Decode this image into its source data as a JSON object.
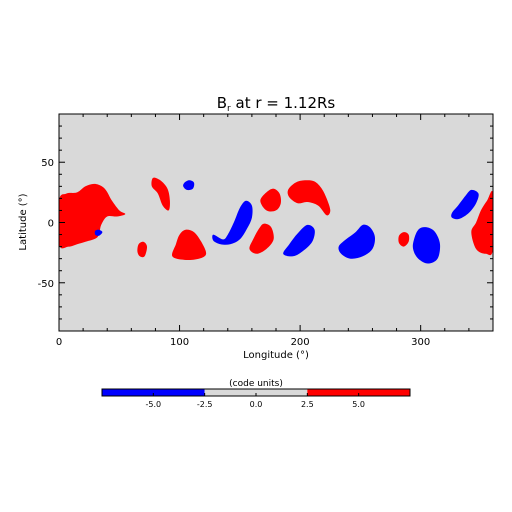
{
  "chart_data": [
    {
      "type": "heatmap",
      "title_main": "B",
      "title_sub": "r",
      "title_rest": " at r = 1.12Rs",
      "xlabel": "Longitude (°)",
      "ylabel": "Latitude (°)",
      "xlim": [
        0,
        360
      ],
      "ylim": [
        -90,
        90
      ],
      "x_ticks": [
        0,
        100,
        200,
        300
      ],
      "y_ticks": [
        -50,
        0,
        50
      ],
      "background_color": "#d9d9d9",
      "colors": {
        "positive": "#ff0000",
        "negative": "#0000ff"
      },
      "regions": [
        {
          "sign": "positive",
          "points": [
            [
              0,
              18
            ],
            [
              6,
              24
            ],
            [
              15,
              25
            ],
            [
              22,
              30
            ],
            [
              30,
              32
            ],
            [
              38,
              28
            ],
            [
              44,
              18
            ],
            [
              50,
              10
            ],
            [
              55,
              7
            ],
            [
              48,
              5
            ],
            [
              40,
              5
            ],
            [
              35,
              -2
            ],
            [
              32,
              -12
            ],
            [
              22,
              -16
            ],
            [
              15,
              -18
            ],
            [
              8,
              -20
            ],
            [
              0,
              -18
            ]
          ]
        },
        {
          "sign": "negative",
          "points": [
            [
              30,
              -7
            ],
            [
              33,
              -6
            ],
            [
              36,
              -8
            ],
            [
              33,
              -11
            ],
            [
              30,
              -10
            ]
          ]
        },
        {
          "sign": "positive",
          "points": [
            [
              78,
              37
            ],
            [
              84,
              35
            ],
            [
              90,
              28
            ],
            [
              92,
              18
            ],
            [
              91,
              10
            ],
            [
              86,
              14
            ],
            [
              82,
              24
            ],
            [
              77,
              30
            ]
          ]
        },
        {
          "sign": "negative",
          "points": [
            [
              104,
              33
            ],
            [
              108,
              35
            ],
            [
              112,
              33
            ],
            [
              111,
              28
            ],
            [
              106,
              27
            ],
            [
              103,
              30
            ]
          ]
        },
        {
          "sign": "positive",
          "points": [
            [
              66,
              -18
            ],
            [
              70,
              -16
            ],
            [
              73,
              -20
            ],
            [
              71,
              -28
            ],
            [
              67,
              -28
            ],
            [
              65,
              -24
            ]
          ]
        },
        {
          "sign": "positive",
          "points": [
            [
              94,
              -28
            ],
            [
              97,
              -18
            ],
            [
              100,
              -10
            ],
            [
              105,
              -6
            ],
            [
              112,
              -8
            ],
            [
              118,
              -16
            ],
            [
              122,
              -26
            ],
            [
              116,
              -30
            ],
            [
              104,
              -31
            ]
          ]
        },
        {
          "sign": "negative",
          "points": [
            [
              128,
              -10
            ],
            [
              136,
              -14
            ],
            [
              140,
              -10
            ],
            [
              145,
              0
            ],
            [
              150,
              12
            ],
            [
              155,
              18
            ],
            [
              160,
              14
            ],
            [
              160,
              4
            ],
            [
              156,
              -5
            ],
            [
              150,
              -14
            ],
            [
              142,
              -18
            ],
            [
              134,
              -18
            ],
            [
              128,
              -15
            ]
          ]
        },
        {
          "sign": "positive",
          "points": [
            [
              158,
              -22
            ],
            [
              161,
              -14
            ],
            [
              166,
              -5
            ],
            [
              170,
              -1
            ],
            [
              176,
              -4
            ],
            [
              178,
              -14
            ],
            [
              172,
              -22
            ],
            [
              164,
              -26
            ]
          ]
        },
        {
          "sign": "positive",
          "points": [
            [
              167,
              18
            ],
            [
              172,
              25
            ],
            [
              178,
              28
            ],
            [
              183,
              24
            ],
            [
              184,
              16
            ],
            [
              180,
              10
            ],
            [
              172,
              10
            ]
          ]
        },
        {
          "sign": "positive",
          "points": [
            [
              190,
              27
            ],
            [
              196,
              33
            ],
            [
              204,
              35
            ],
            [
              212,
              34
            ],
            [
              218,
              28
            ],
            [
              222,
              20
            ],
            [
              225,
              10
            ],
            [
              222,
              6
            ],
            [
              215,
              14
            ],
            [
              206,
              17
            ],
            [
              198,
              16
            ],
            [
              191,
              21
            ]
          ]
        },
        {
          "sign": "negative",
          "points": [
            [
              186,
              -26
            ],
            [
              191,
              -18
            ],
            [
              198,
              -9
            ],
            [
              206,
              -2
            ],
            [
              212,
              -6
            ],
            [
              210,
              -16
            ],
            [
              202,
              -24
            ],
            [
              194,
              -28
            ]
          ]
        },
        {
          "sign": "negative",
          "points": [
            [
              232,
              -20
            ],
            [
              238,
              -14
            ],
            [
              246,
              -8
            ],
            [
              252,
              -2
            ],
            [
              258,
              -4
            ],
            [
              262,
              -12
            ],
            [
              260,
              -22
            ],
            [
              252,
              -28
            ],
            [
              242,
              -30
            ],
            [
              234,
              -26
            ]
          ]
        },
        {
          "sign": "positive",
          "points": [
            [
              282,
              -11
            ],
            [
              286,
              -8
            ],
            [
              290,
              -10
            ],
            [
              290,
              -16
            ],
            [
              286,
              -20
            ],
            [
              282,
              -17
            ]
          ]
        },
        {
          "sign": "negative",
          "points": [
            [
              294,
              -16
            ],
            [
              298,
              -6
            ],
            [
              305,
              -4
            ],
            [
              312,
              -8
            ],
            [
              316,
              -18
            ],
            [
              314,
              -30
            ],
            [
              306,
              -34
            ],
            [
              298,
              -30
            ],
            [
              294,
              -23
            ]
          ]
        },
        {
          "sign": "negative",
          "points": [
            [
              326,
              8
            ],
            [
              331,
              14
            ],
            [
              337,
              22
            ],
            [
              342,
              27
            ],
            [
              348,
              24
            ],
            [
              346,
              16
            ],
            [
              340,
              8
            ],
            [
              332,
              3
            ],
            [
              326,
              4
            ]
          ]
        },
        {
          "sign": "positive",
          "points": [
            [
              342,
              -8
            ],
            [
              346,
              0
            ],
            [
              350,
              10
            ],
            [
              355,
              18
            ],
            [
              360,
              24
            ],
            [
              360,
              -22
            ],
            [
              354,
              -26
            ],
            [
              346,
              -22
            ]
          ]
        }
      ]
    },
    {
      "type": "colorbar",
      "label": "(code units)",
      "range": [
        -7.5,
        7.5
      ],
      "ticks": [
        "-5.0",
        "-2.5",
        "0.0",
        "2.5",
        "5.0"
      ],
      "tick_values": [
        -5.0,
        -2.5,
        0.0,
        2.5,
        5.0
      ],
      "segments": [
        {
          "from": -7.5,
          "to": -2.5,
          "color": "#0000ff"
        },
        {
          "from": -2.5,
          "to": 2.5,
          "color": "#d9d9d9"
        },
        {
          "from": 2.5,
          "to": 7.5,
          "color": "#ff0000"
        }
      ]
    }
  ]
}
